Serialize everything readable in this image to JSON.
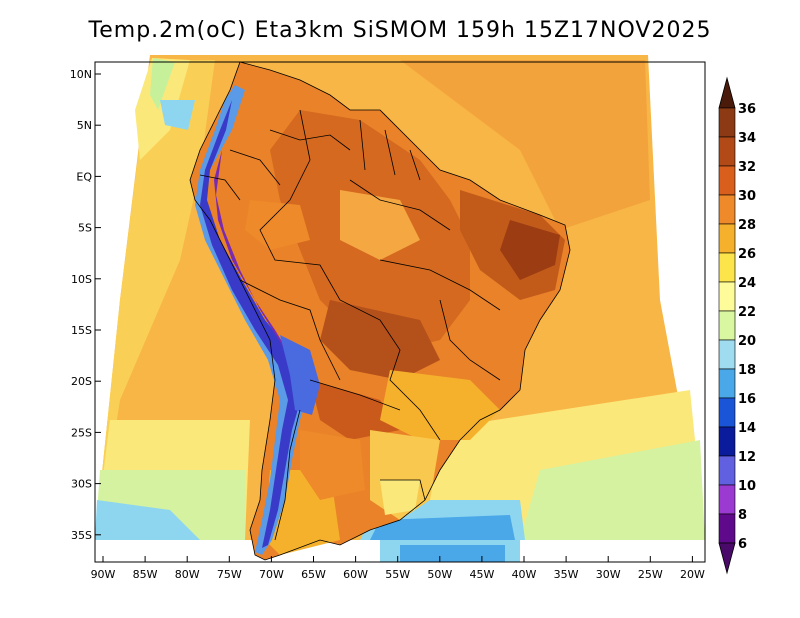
{
  "title": "Temp.2m(oC) Eta3km SiSMOM 159h 15Z17NOV2025",
  "lat_ticks": [
    "10N",
    "5N",
    "EQ",
    "5S",
    "10S",
    "15S",
    "20S",
    "25S",
    "30S",
    "35S"
  ],
  "lon_ticks": [
    "90W",
    "85W",
    "80W",
    "75W",
    "70W",
    "65W",
    "60W",
    "55W",
    "50W",
    "45W",
    "40W",
    "35W",
    "30W",
    "25W",
    "20W"
  ],
  "colorbar": {
    "labels": [
      "36",
      "34",
      "32",
      "30",
      "28",
      "26",
      "24",
      "22",
      "20",
      "18",
      "16",
      "14",
      "12",
      "10",
      "8",
      "6"
    ],
    "colors": [
      "#6b2a10",
      "#8b3a14",
      "#b24a18",
      "#d9601c",
      "#ee8a2a",
      "#f5b12c",
      "#fbe54a",
      "#fdfb9a",
      "#d8f7a0",
      "#9fdcf0",
      "#4aa8e8",
      "#1a55d8",
      "#0a1b9c",
      "#6060e0",
      "#9a3ad0",
      "#5e0a8a"
    ],
    "top_color": "#4a1a0a",
    "bottom_color": "#4a0a6a"
  },
  "map_colors": {
    "ocean_warm": "#f5a842",
    "ocean_mid": "#f9c84e",
    "ocean_cool": "#fbe87a",
    "ocean_cold": "#d4f2a0",
    "ocean_cyan": "#8ed6f0",
    "land_base": "#e98228",
    "land_hot": "#c95a1c",
    "land_veryhot": "#9b3c12",
    "andes": "#3a3ac8",
    "andes_dark": "#5a1a9a",
    "andes_light": "#5a9ae6",
    "south_cold": "#1f4ad0"
  }
}
